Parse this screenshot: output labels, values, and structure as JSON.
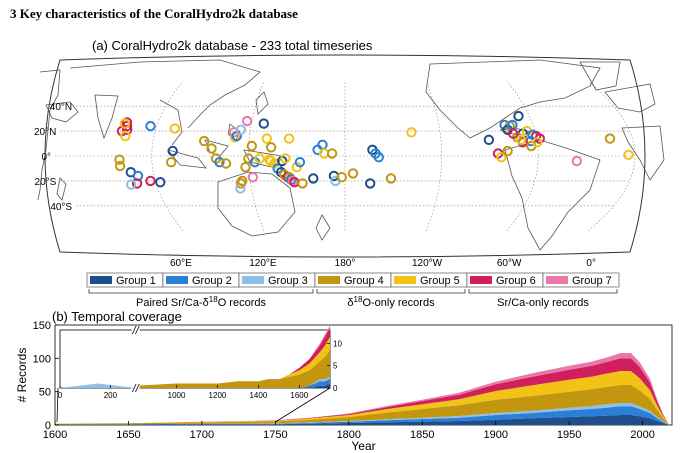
{
  "section_heading": "3 Key characteristics of the CoralHydro2k database",
  "map": {
    "title": "(a) CoralHydro2k database - 233 total timeseries",
    "lat_labels": [
      "40°N",
      "20°N",
      "0°",
      "20°S",
      "40°S"
    ],
    "lon_labels": [
      "60°E",
      "120°E",
      "180°",
      "120°W",
      "60°W",
      "0°"
    ],
    "legend": [
      {
        "label": "Group 1",
        "color": "#1f4e8c"
      },
      {
        "label": "Group 2",
        "color": "#2b7fd4"
      },
      {
        "label": "Group 3",
        "color": "#8dbfe8"
      },
      {
        "label": "Group 4",
        "color": "#c2960e"
      },
      {
        "label": "Group 5",
        "color": "#f2c216"
      },
      {
        "label": "Group 6",
        "color": "#cf1f5c"
      },
      {
        "label": "Group 7",
        "color": "#e878a8"
      }
    ],
    "legend_groups": [
      {
        "label": "Paired Sr/Ca-δ",
        "sup": "18",
        "tail": "O records"
      },
      {
        "label": "δ",
        "sup": "18",
        "tail": "O-only records"
      },
      {
        "label": "Sr/Ca-only records",
        "sup": "",
        "tail": ""
      }
    ],
    "sites": [
      {
        "lon": 40,
        "lat": 27,
        "g": 6
      },
      {
        "lon": 41,
        "lat": 24,
        "g": 6
      },
      {
        "lon": 42,
        "lat": 21,
        "g": 6
      },
      {
        "lon": 39,
        "lat": 20,
        "g": 6
      },
      {
        "lon": 39,
        "lat": 26,
        "g": 5
      },
      {
        "lon": 42,
        "lat": 16,
        "g": 5
      },
      {
        "lon": 56,
        "lat": 24,
        "g": 2
      },
      {
        "lon": 72,
        "lat": 22,
        "g": 5
      },
      {
        "lon": 73,
        "lat": 4,
        "g": 1
      },
      {
        "lon": 72,
        "lat": -5,
        "g": 4
      },
      {
        "lon": 40,
        "lat": -3,
        "g": 4
      },
      {
        "lon": 40,
        "lat": -8,
        "g": 4
      },
      {
        "lon": 46,
        "lat": -13,
        "g": 1
      },
      {
        "lon": 50,
        "lat": -16,
        "g": 2
      },
      {
        "lon": 48,
        "lat": -22,
        "g": 6
      },
      {
        "lon": 44,
        "lat": -23,
        "g": 3
      },
      {
        "lon": 57,
        "lat": -20,
        "g": 6
      },
      {
        "lon": 63,
        "lat": -21,
        "g": 1
      },
      {
        "lon": 92,
        "lat": 12,
        "g": 4
      },
      {
        "lon": 97,
        "lat": 6,
        "g": 4
      },
      {
        "lon": 100,
        "lat": -2,
        "g": 4
      },
      {
        "lon": 102,
        "lat": -5,
        "g": 2
      },
      {
        "lon": 106,
        "lat": -6,
        "g": 4
      },
      {
        "lon": 111,
        "lat": 15,
        "g": 5
      },
      {
        "lon": 110,
        "lat": 19,
        "g": 7
      },
      {
        "lon": 112,
        "lat": 16,
        "g": 2
      },
      {
        "lon": 114,
        "lat": 21,
        "g": 3
      },
      {
        "lon": 120,
        "lat": -2,
        "g": 4
      },
      {
        "lon": 118,
        "lat": -9,
        "g": 4
      },
      {
        "lon": 124,
        "lat": -5,
        "g": 2
      },
      {
        "lon": 127,
        "lat": -2,
        "g": 5
      },
      {
        "lon": 131,
        "lat": 14,
        "g": 5
      },
      {
        "lon": 128,
        "lat": 26,
        "g": 1
      },
      {
        "lon": 117,
        "lat": 28,
        "g": 7
      },
      {
        "lon": 122,
        "lat": 8,
        "g": 4
      },
      {
        "lon": 114,
        "lat": -22,
        "g": 4
      },
      {
        "lon": 113,
        "lat": -26,
        "g": 3
      },
      {
        "lon": 115,
        "lat": -20,
        "g": 4
      },
      {
        "lon": 122,
        "lat": -17,
        "g": 7
      },
      {
        "lon": 133,
        "lat": -3,
        "g": 5
      },
      {
        "lon": 134,
        "lat": -4,
        "g": 5
      },
      {
        "lon": 136,
        "lat": -6,
        "g": 5
      },
      {
        "lon": 138,
        "lat": -10,
        "g": 2
      },
      {
        "lon": 140,
        "lat": -13,
        "g": 1
      },
      {
        "lon": 142,
        "lat": -15,
        "g": 4
      },
      {
        "lon": 144,
        "lat": -17,
        "g": 6
      },
      {
        "lon": 145,
        "lat": -17,
        "g": 4
      },
      {
        "lon": 146,
        "lat": -19,
        "g": 2
      },
      {
        "lon": 147,
        "lat": -20,
        "g": 7
      },
      {
        "lon": 148,
        "lat": -21,
        "g": 6
      },
      {
        "lon": 153,
        "lat": -22,
        "g": 4
      },
      {
        "lon": 160,
        "lat": -18,
        "g": 1
      },
      {
        "lon": 150,
        "lat": -9,
        "g": 5
      },
      {
        "lon": 152,
        "lat": -5,
        "g": 2
      },
      {
        "lon": 141,
        "lat": -4,
        "g": 1
      },
      {
        "lon": 134,
        "lat": 7,
        "g": 4
      },
      {
        "lon": 143,
        "lat": -2,
        "g": 5
      },
      {
        "lon": 145,
        "lat": 14,
        "g": 5
      },
      {
        "lon": 163,
        "lat": 5,
        "g": 2
      },
      {
        "lon": 166,
        "lat": 9,
        "g": 2
      },
      {
        "lon": 167,
        "lat": 2,
        "g": 5
      },
      {
        "lon": 172,
        "lat": 2,
        "g": 4
      },
      {
        "lon": 173,
        "lat": -16,
        "g": 1
      },
      {
        "lon": 174,
        "lat": -20,
        "g": 3
      },
      {
        "lon": 178,
        "lat": -17,
        "g": 4
      },
      {
        "lon": 185,
        "lat": -14,
        "g": 4
      },
      {
        "lon": 197,
        "lat": 5,
        "g": 1
      },
      {
        "lon": 199,
        "lat": 2,
        "g": 2
      },
      {
        "lon": 201,
        "lat": -1,
        "g": 2
      },
      {
        "lon": 196,
        "lat": -22,
        "g": 1
      },
      {
        "lon": 209,
        "lat": -18,
        "g": 4
      },
      {
        "lon": 222,
        "lat": 19,
        "g": 5
      },
      {
        "lon": 270,
        "lat": 13,
        "g": 1
      },
      {
        "lon": 275,
        "lat": 2,
        "g": 6
      },
      {
        "lon": 277,
        "lat": -1,
        "g": 5
      },
      {
        "lon": 281,
        "lat": 4,
        "g": 4
      },
      {
        "lon": 282,
        "lat": 25,
        "g": 2
      },
      {
        "lon": 285,
        "lat": 24,
        "g": 4
      },
      {
        "lon": 283,
        "lat": 21,
        "g": 1
      },
      {
        "lon": 287,
        "lat": 25,
        "g": 2
      },
      {
        "lon": 293,
        "lat": 32,
        "g": 1
      },
      {
        "lon": 292,
        "lat": 18,
        "g": 1
      },
      {
        "lon": 295,
        "lat": 20,
        "g": 5
      },
      {
        "lon": 298,
        "lat": 17,
        "g": 2
      },
      {
        "lon": 300,
        "lat": 16,
        "g": 6
      },
      {
        "lon": 302,
        "lat": 14,
        "g": 6
      },
      {
        "lon": 296,
        "lat": 12,
        "g": 2
      },
      {
        "lon": 291,
        "lat": 11,
        "g": 6
      },
      {
        "lon": 296,
        "lat": 8,
        "g": 4
      },
      {
        "lon": 288,
        "lat": 15,
        "g": 4
      },
      {
        "lon": 290,
        "lat": 13,
        "g": 5
      },
      {
        "lon": 286,
        "lat": 18,
        "g": 6
      },
      {
        "lon": 300,
        "lat": 11,
        "g": 5
      },
      {
        "lon": 324,
        "lat": -4,
        "g": 7
      },
      {
        "lon": 346,
        "lat": 14,
        "g": 4
      },
      {
        "lon": 356,
        "lat": 1,
        "g": 5
      }
    ]
  },
  "timeline": {
    "title": "(b) Temporal coverage",
    "ylabel": "# Records",
    "xlabel": "Year",
    "break_symbol": "//"
  },
  "chart_data": {
    "type": "area",
    "title": "(b) Temporal coverage",
    "xlabel": "Year",
    "ylabel": "# Records",
    "xlim": [
      1600,
      2020
    ],
    "ylim": [
      0,
      150
    ],
    "x_ticks": [
      1600,
      1650,
      1700,
      1750,
      1800,
      1850,
      1900,
      1950,
      2000
    ],
    "y_ticks": [
      0,
      50,
      100,
      150
    ],
    "stacked": true,
    "series_order": [
      "Group 1",
      "Group 2",
      "Group 3",
      "Group 4",
      "Group 5",
      "Group 6",
      "Group 7"
    ],
    "x": [
      1600,
      1650,
      1700,
      1750,
      1775,
      1800,
      1825,
      1850,
      1875,
      1900,
      1925,
      1950,
      1965,
      1975,
      1985,
      1992,
      1998,
      2005,
      2010,
      2014,
      2018
    ],
    "series": [
      {
        "name": "Group 1",
        "values": [
          0.5,
          0.5,
          1,
          1,
          2,
          3,
          4,
          5,
          6,
          8,
          10,
          12,
          13,
          14,
          15,
          15,
          13,
          10,
          6,
          3,
          0
        ]
      },
      {
        "name": "Group 2",
        "values": [
          0.3,
          0.5,
          0.8,
          1,
          1.5,
          2,
          3,
          4,
          5,
          7,
          8,
          10,
          11,
          12,
          13,
          13,
          11,
          8,
          4,
          2,
          0
        ]
      },
      {
        "name": "Group 3",
        "values": [
          0,
          0,
          0.2,
          0.4,
          0.6,
          1,
          1.5,
          2,
          2.5,
          3,
          3.5,
          4,
          4.5,
          5,
          5,
          5,
          4,
          3,
          2,
          1,
          0
        ]
      },
      {
        "name": "Group 4",
        "values": [
          1,
          1.5,
          2,
          3,
          4,
          6,
          10,
          13,
          16,
          20,
          22,
          24,
          25,
          26,
          27,
          27,
          24,
          18,
          10,
          4,
          0
        ]
      },
      {
        "name": "Group 5",
        "values": [
          0,
          0.2,
          0.5,
          1,
          2,
          3,
          5,
          7,
          9,
          13,
          16,
          18,
          19,
          20,
          21,
          21,
          18,
          13,
          7,
          3,
          0
        ]
      },
      {
        "name": "Group 6",
        "values": [
          0,
          0,
          0.2,
          0.4,
          0.8,
          1.5,
          3,
          5,
          7,
          10,
          13,
          15,
          16,
          17,
          19,
          19,
          17,
          12,
          6,
          2,
          0
        ]
      },
      {
        "name": "Group 7",
        "values": [
          0,
          0,
          0.1,
          0.2,
          0.4,
          0.8,
          1.5,
          2,
          3,
          4,
          5,
          6,
          6.5,
          7,
          8,
          8,
          7,
          5,
          3,
          1,
          0
        ]
      }
    ],
    "inset": {
      "xlim": [
        0,
        1750
      ],
      "ylim": [
        0,
        13
      ],
      "x_ticks": [
        0,
        200,
        1000,
        1200,
        1400,
        1600
      ],
      "y_ticks": [
        0,
        5,
        10
      ],
      "axis_break_between": [
        300,
        800
      ],
      "x": [
        0,
        150,
        300,
        800,
        1000,
        1200,
        1300,
        1400,
        1450,
        1500,
        1550,
        1600,
        1650,
        1700,
        1725,
        1750
      ],
      "series": [
        {
          "name": "Group 1",
          "values": [
            0,
            0,
            0,
            0,
            0,
            0,
            0,
            0,
            0,
            0,
            0,
            0,
            0,
            0.5,
            0.5,
            1
          ]
        },
        {
          "name": "Group 2",
          "values": [
            0,
            0,
            0,
            0,
            0,
            0,
            0,
            0,
            0,
            0,
            0,
            0,
            0.5,
            1,
            1,
            1
          ]
        },
        {
          "name": "Group 3",
          "values": [
            0,
            1,
            0,
            0,
            0,
            0,
            0,
            0,
            0,
            0,
            0,
            0,
            0,
            0.5,
            0.5,
            0.5
          ]
        },
        {
          "name": "Group 4",
          "values": [
            0,
            0,
            0,
            0.5,
            1,
            1,
            1.5,
            1.5,
            2,
            2,
            2.5,
            3,
            3.5,
            4,
            5,
            6
          ]
        },
        {
          "name": "Group 5",
          "values": [
            0,
            0,
            0,
            0,
            0,
            0,
            0,
            0,
            0,
            0,
            0.5,
            1,
            1.5,
            2,
            2.5,
            3
          ]
        },
        {
          "name": "Group 6",
          "values": [
            0,
            0,
            0,
            0,
            0,
            0,
            0,
            0,
            0,
            0,
            0,
            0.5,
            1,
            1.5,
            2,
            2
          ]
        },
        {
          "name": "Group 7",
          "values": [
            0,
            0,
            0,
            0,
            0,
            0,
            0,
            0,
            0,
            0,
            0,
            0,
            0,
            0.5,
            0.5,
            0.5
          ]
        }
      ]
    }
  }
}
